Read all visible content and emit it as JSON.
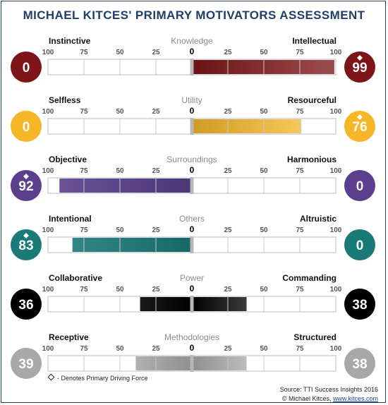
{
  "title": "MICHAEL KITCES' PRIMARY MOTIVATORS ASSESSMENT",
  "footnote": "- Denotes Primary Driving Force",
  "source": {
    "line1": "Source: TTI Success Insights 2016",
    "line2_prefix": "© Michael Kitces, ",
    "link": "www.kitces.com"
  },
  "colors": {
    "dark_red": "#7d1518",
    "yellow": "#f5b628",
    "purple": "#5b3f8c",
    "teal": "#1a7a78",
    "black": "#000000",
    "gray": "#a8a8a8",
    "axis_gray": "#c8c8c8"
  },
  "chart_data": {
    "type": "bar",
    "orientation": "diverging-horizontal",
    "ticks": [
      100,
      75,
      50,
      25,
      0,
      25,
      50,
      75,
      100
    ],
    "xlim": [
      -100,
      100
    ],
    "rows": [
      {
        "name": "Knowledge",
        "left_label": "Instinctive",
        "right_label": "Intellectual",
        "left_value": 0,
        "right_value": 99,
        "primary_side": "right",
        "color": "#7d1518"
      },
      {
        "name": "Utility",
        "left_label": "Selfless",
        "right_label": "Resourceful",
        "left_value": 0,
        "right_value": 76,
        "primary_side": "right",
        "color": "#f5b628"
      },
      {
        "name": "Surroundings",
        "left_label": "Objective",
        "right_label": "Harmonious",
        "left_value": 92,
        "right_value": 0,
        "primary_side": "left",
        "color": "#5b3f8c"
      },
      {
        "name": "Others",
        "left_label": "Intentional",
        "right_label": "Altruistic",
        "left_value": 83,
        "right_value": 0,
        "primary_side": "left",
        "color": "#1a7a78"
      },
      {
        "name": "Power",
        "left_label": "Collaborative",
        "right_label": "Commanding",
        "left_value": 36,
        "right_value": 38,
        "primary_side": "",
        "color": "#000000"
      },
      {
        "name": "Methodologies",
        "left_label": "Receptive",
        "right_label": "Structured",
        "left_value": 39,
        "right_value": 38,
        "primary_side": "",
        "color": "#a8a8a8"
      }
    ]
  }
}
